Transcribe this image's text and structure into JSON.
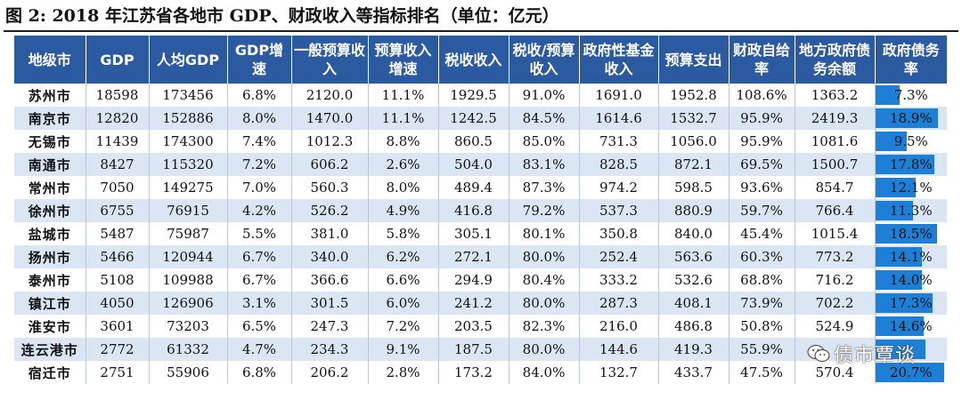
{
  "title": "图 2:  2018 年江苏省各地市 GDP、财政收入等指标排名（单位：亿元）",
  "watermark": "债市覃谈",
  "colors": {
    "header_bg": "#2c5aa0",
    "row_alt_bg": "#dbe6f4",
    "bar_fill": "#1e7fd6"
  },
  "headers": [
    "地级市",
    "GDP",
    "人均GDP",
    "GDP增速",
    "一般预算收入",
    "预算收入增速",
    "税收收入",
    "税收/预算收入",
    "政府性基金收入",
    "预算支出",
    "财政自给率",
    "地方政府债务余额",
    "政府债务率"
  ],
  "rows": [
    {
      "city": "苏州市",
      "gdp": "18598",
      "gdp_pc": "173456",
      "gdp_growth": "6.8%",
      "budget_rev": "2120.0",
      "rev_growth": "11.1%",
      "tax_rev": "1929.5",
      "tax_ratio": "91.0%",
      "fund_rev": "1691.0",
      "budget_exp": "1952.8",
      "self_suff": "108.6%",
      "debt_bal": "1363.2",
      "debt_ratio": "7.3%",
      "debt_ratio_value": 7.3
    },
    {
      "city": "南京市",
      "gdp": "12820",
      "gdp_pc": "152886",
      "gdp_growth": "8.0%",
      "budget_rev": "1470.0",
      "rev_growth": "11.1%",
      "tax_rev": "1242.5",
      "tax_ratio": "84.5%",
      "fund_rev": "1614.6",
      "budget_exp": "1532.7",
      "self_suff": "95.9%",
      "debt_bal": "2419.3",
      "debt_ratio": "18.9%",
      "debt_ratio_value": 18.9
    },
    {
      "city": "无锡市",
      "gdp": "11439",
      "gdp_pc": "174300",
      "gdp_growth": "7.4%",
      "budget_rev": "1012.3",
      "rev_growth": "8.8%",
      "tax_rev": "860.5",
      "tax_ratio": "85.0%",
      "fund_rev": "731.3",
      "budget_exp": "1056.0",
      "self_suff": "95.9%",
      "debt_bal": "1081.6",
      "debt_ratio": "9.5%",
      "debt_ratio_value": 9.5
    },
    {
      "city": "南通市",
      "gdp": "8427",
      "gdp_pc": "115320",
      "gdp_growth": "7.2%",
      "budget_rev": "606.2",
      "rev_growth": "2.6%",
      "tax_rev": "504.0",
      "tax_ratio": "83.1%",
      "fund_rev": "828.5",
      "budget_exp": "872.1",
      "self_suff": "69.5%",
      "debt_bal": "1500.7",
      "debt_ratio": "17.8%",
      "debt_ratio_value": 17.8
    },
    {
      "city": "常州市",
      "gdp": "7050",
      "gdp_pc": "149275",
      "gdp_growth": "7.0%",
      "budget_rev": "560.3",
      "rev_growth": "8.0%",
      "tax_rev": "489.4",
      "tax_ratio": "87.3%",
      "fund_rev": "974.2",
      "budget_exp": "598.5",
      "self_suff": "93.6%",
      "debt_bal": "854.7",
      "debt_ratio": "12.1%",
      "debt_ratio_value": 12.1
    },
    {
      "city": "徐州市",
      "gdp": "6755",
      "gdp_pc": "76915",
      "gdp_growth": "4.2%",
      "budget_rev": "526.2",
      "rev_growth": "4.9%",
      "tax_rev": "416.8",
      "tax_ratio": "79.2%",
      "fund_rev": "537.3",
      "budget_exp": "880.9",
      "self_suff": "59.7%",
      "debt_bal": "766.4",
      "debt_ratio": "11.3%",
      "debt_ratio_value": 11.3
    },
    {
      "city": "盐城市",
      "gdp": "5487",
      "gdp_pc": "75987",
      "gdp_growth": "5.5%",
      "budget_rev": "381.0",
      "rev_growth": "5.8%",
      "tax_rev": "305.1",
      "tax_ratio": "80.1%",
      "fund_rev": "350.8",
      "budget_exp": "840.0",
      "self_suff": "45.4%",
      "debt_bal": "1015.4",
      "debt_ratio": "18.5%",
      "debt_ratio_value": 18.5
    },
    {
      "city": "扬州市",
      "gdp": "5466",
      "gdp_pc": "120944",
      "gdp_growth": "6.7%",
      "budget_rev": "340.0",
      "rev_growth": "6.2%",
      "tax_rev": "272.1",
      "tax_ratio": "80.0%",
      "fund_rev": "252.4",
      "budget_exp": "563.6",
      "self_suff": "60.3%",
      "debt_bal": "773.2",
      "debt_ratio": "14.1%",
      "debt_ratio_value": 14.1
    },
    {
      "city": "泰州市",
      "gdp": "5108",
      "gdp_pc": "109988",
      "gdp_growth": "6.7%",
      "budget_rev": "366.6",
      "rev_growth": "6.6%",
      "tax_rev": "294.9",
      "tax_ratio": "80.4%",
      "fund_rev": "333.2",
      "budget_exp": "532.6",
      "self_suff": "68.8%",
      "debt_bal": "716.2",
      "debt_ratio": "14.0%",
      "debt_ratio_value": 14.0
    },
    {
      "city": "镇江市",
      "gdp": "4050",
      "gdp_pc": "126906",
      "gdp_growth": "3.1%",
      "budget_rev": "301.5",
      "rev_growth": "6.0%",
      "tax_rev": "241.2",
      "tax_ratio": "80.0%",
      "fund_rev": "287.3",
      "budget_exp": "408.1",
      "self_suff": "73.9%",
      "debt_bal": "702.2",
      "debt_ratio": "17.3%",
      "debt_ratio_value": 17.3
    },
    {
      "city": "淮安市",
      "gdp": "3601",
      "gdp_pc": "73203",
      "gdp_growth": "6.5%",
      "budget_rev": "247.3",
      "rev_growth": "7.2%",
      "tax_rev": "203.5",
      "tax_ratio": "82.3%",
      "fund_rev": "216.0",
      "budget_exp": "486.8",
      "self_suff": "50.8%",
      "debt_bal": "524.9",
      "debt_ratio": "14.6%",
      "debt_ratio_value": 14.6
    },
    {
      "city": "连云港市",
      "gdp": "2772",
      "gdp_pc": "61332",
      "gdp_growth": "4.7%",
      "budget_rev": "234.3",
      "rev_growth": "9.1%",
      "tax_rev": "187.5",
      "tax_ratio": "80.0%",
      "fund_rev": "144.6",
      "budget_exp": "419.3",
      "self_suff": "55.9%",
      "debt_bal": "",
      "debt_ratio": "",
      "debt_ratio_value": 15.0
    },
    {
      "city": "宿迁市",
      "gdp": "2751",
      "gdp_pc": "55906",
      "gdp_growth": "6.8%",
      "budget_rev": "206.2",
      "rev_growth": "2.8%",
      "tax_rev": "173.2",
      "tax_ratio": "84.0%",
      "fund_rev": "132.7",
      "budget_exp": "433.7",
      "self_suff": "47.5%",
      "debt_bal": "570.4",
      "debt_ratio": "20.7%",
      "debt_ratio_value": 20.7
    }
  ]
}
